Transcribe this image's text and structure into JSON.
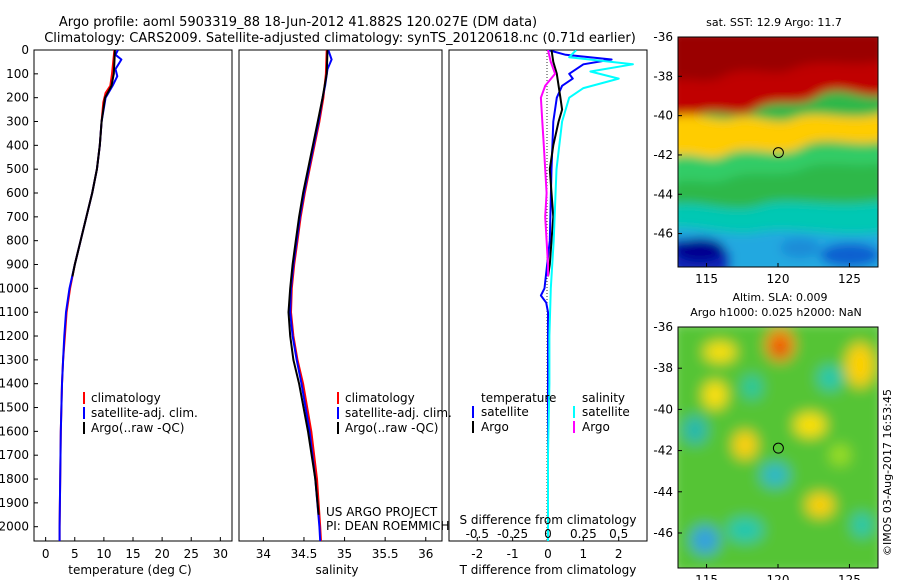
{
  "header": {
    "title_line1": "Argo profile: aoml 5903319_88 18-Jun-2012 41.882S 120.027E (DM data)",
    "title_line2": "Climatology: CARS2009. Satellite-adjusted climatology: synTS_20120618.nc (0.71d earlier)"
  },
  "colors": {
    "climatology": "#ff0000",
    "satellite": "#0000ff",
    "argo": "#000000",
    "sal_satellite": "#00ffff",
    "sal_argo": "#ff00ff",
    "marker": "#000000"
  },
  "depth_ticks": [
    "0",
    "100",
    "200",
    "300",
    "400",
    "500",
    "600",
    "700",
    "800",
    "900",
    "1000",
    "1100",
    "1200",
    "1300",
    "1400",
    "1500",
    "1600",
    "1700",
    "1800",
    "1900",
    "2000"
  ],
  "chart_data": [
    {
      "id": "temperature",
      "type": "line",
      "xlabel": "temperature (deg C)",
      "ylabel": "depth",
      "xlim": [
        -2,
        32
      ],
      "ylim": [
        0,
        2060
      ],
      "xticks": [
        "0",
        "5",
        "10",
        "15",
        "20",
        "25",
        "30"
      ],
      "legend": [
        "climatology",
        "satellite-adj. clim.",
        "Argo(..raw -QC)"
      ],
      "series": [
        {
          "name": "climatology",
          "color": "#ff0000",
          "depth": [
            0,
            50,
            100,
            150,
            180,
            220,
            300,
            400,
            500,
            600,
            700,
            800,
            900,
            1000,
            1100,
            1200,
            1300,
            1400,
            1600,
            1800,
            2000,
            2060
          ],
          "values": [
            11.8,
            11.6,
            11.4,
            11.1,
            10.3,
            9.9,
            9.6,
            9.3,
            8.8,
            8.0,
            7.0,
            6.0,
            5.0,
            4.2,
            3.6,
            3.3,
            3.0,
            2.8,
            2.6,
            2.5,
            2.4,
            2.4
          ]
        },
        {
          "name": "satellite-adj. clim.",
          "color": "#0000ff",
          "depth": [
            0,
            20,
            40,
            80,
            110,
            150,
            200,
            300,
            400,
            500,
            600,
            700,
            800,
            900,
            1000,
            1100,
            1200,
            1300,
            1400,
            1600,
            1800,
            2000,
            2060
          ],
          "values": [
            12.4,
            12.0,
            13.0,
            12.0,
            12.3,
            11.5,
            10.3,
            9.6,
            9.3,
            8.8,
            8.0,
            7.0,
            6.0,
            5.0,
            4.1,
            3.5,
            3.2,
            3.0,
            2.8,
            2.6,
            2.5,
            2.4,
            2.4
          ]
        },
        {
          "name": "Argo(..raw -QC)",
          "color": "#000000",
          "depth": [
            0,
            50,
            100,
            150,
            200,
            300,
            400,
            500,
            600,
            700,
            800,
            900,
            950
          ],
          "values": [
            11.9,
            11.8,
            11.7,
            11.3,
            10.2,
            9.6,
            9.3,
            8.8,
            8.0,
            7.0,
            6.0,
            5.0,
            4.6
          ]
        }
      ]
    },
    {
      "id": "salinity",
      "type": "line",
      "xlabel": "salinity",
      "ylabel": "depth",
      "xlim": [
        33.7,
        36.2
      ],
      "ylim": [
        0,
        2060
      ],
      "xticks": [
        "34",
        "34.5",
        "35",
        "35.5",
        "36"
      ],
      "legend": [
        "climatology",
        "satellite-adj. clim.",
        "Argo(..raw -QC)"
      ],
      "annotation_line1": "US ARGO PROJECT",
      "annotation_line2": "PI: DEAN ROEMMICH",
      "series": [
        {
          "name": "climatology",
          "color": "#ff0000",
          "depth": [
            0,
            100,
            200,
            300,
            400,
            500,
            600,
            700,
            800,
            900,
            1000,
            1100,
            1200,
            1300,
            1400,
            1600,
            1800,
            2000,
            2060
          ],
          "values": [
            34.78,
            34.77,
            34.74,
            34.69,
            34.63,
            34.57,
            34.51,
            34.46,
            34.42,
            34.38,
            34.35,
            34.34,
            34.37,
            34.42,
            34.49,
            34.59,
            34.66,
            34.7,
            34.71
          ]
        },
        {
          "name": "satellite-adj. clim.",
          "color": "#0000ff",
          "depth": [
            0,
            40,
            80,
            150,
            200,
            300,
            400,
            500,
            600,
            700,
            800,
            900,
            1000,
            1100,
            1200,
            1300,
            1400,
            1600,
            1800,
            2000,
            2060
          ],
          "values": [
            34.8,
            34.84,
            34.79,
            34.76,
            34.73,
            34.68,
            34.62,
            34.56,
            34.5,
            34.45,
            34.41,
            34.37,
            34.34,
            34.33,
            34.36,
            34.41,
            34.47,
            34.57,
            34.64,
            34.69,
            34.7
          ]
        },
        {
          "name": "Argo(..raw -QC)",
          "color": "#000000",
          "depth": [
            0,
            100,
            200,
            300,
            400,
            500,
            600,
            700,
            800,
            900,
            1000,
            1100,
            1200,
            1300,
            1400,
            1600,
            1800,
            1950
          ],
          "values": [
            34.79,
            34.78,
            34.73,
            34.67,
            34.61,
            34.55,
            34.49,
            34.44,
            34.4,
            34.36,
            34.33,
            34.31,
            34.33,
            34.37,
            34.44,
            34.55,
            34.64,
            34.68
          ]
        }
      ]
    },
    {
      "id": "difference",
      "type": "line",
      "xlabel": "T difference from climatology",
      "xlabel_top": "S difference from climatology",
      "xlim": [
        -2.8,
        2.8
      ],
      "ylim": [
        0,
        2060
      ],
      "xticks": [
        "-2",
        "-1",
        "0",
        "1",
        "2"
      ],
      "xticks_top": [
        "-0.5",
        "-0.25",
        "0",
        "0.25",
        "0.5"
      ],
      "legend_headers": [
        "temperature",
        "salinity"
      ],
      "legend": [
        "satellite",
        "Argo",
        "satellite",
        "Argo"
      ],
      "series": [
        {
          "name": "T satellite",
          "color": "#0000ff",
          "depth": [
            0,
            20,
            40,
            60,
            80,
            100,
            120,
            150,
            200,
            300,
            500,
            800,
            1000,
            1030,
            1060,
            1100,
            1300,
            1600,
            2060
          ],
          "values": [
            0.0,
            0.5,
            1.8,
            1.0,
            0.8,
            0.6,
            0.7,
            0.4,
            0.25,
            0.15,
            0.1,
            0.05,
            -0.1,
            -0.2,
            -0.05,
            0.0,
            0.0,
            0.0,
            0.0
          ]
        },
        {
          "name": "T Argo",
          "color": "#000000",
          "depth": [
            0,
            50,
            100,
            150,
            200,
            250,
            300,
            400,
            500,
            600,
            700,
            800,
            900,
            950
          ],
          "values": [
            0.1,
            0.15,
            0.25,
            0.3,
            0.35,
            0.4,
            0.3,
            0.15,
            0.05,
            0.1,
            0.15,
            0.1,
            0.05,
            0.0
          ]
        },
        {
          "name": "S satellite",
          "color": "#00ffff",
          "depth": [
            0,
            30,
            60,
            90,
            120,
            160,
            200,
            300,
            500,
            800,
            1000,
            1200,
            1400,
            1700,
            2060
          ],
          "values": [
            0.2,
            0.15,
            0.6,
            0.3,
            0.5,
            0.25,
            0.15,
            0.1,
            0.06,
            0.04,
            0.02,
            0.01,
            0.01,
            0.0,
            0.0
          ]
        },
        {
          "name": "S Argo",
          "color": "#ff00ff",
          "depth": [
            0,
            50,
            100,
            150,
            200,
            300,
            400,
            500,
            600,
            700,
            800,
            900,
            950
          ],
          "values": [
            0.0,
            0.02,
            0.05,
            -0.02,
            -0.05,
            -0.04,
            -0.03,
            -0.02,
            -0.01,
            -0.02,
            -0.01,
            0.0,
            0.0
          ]
        }
      ]
    },
    {
      "id": "sst_map",
      "type": "heatmap",
      "title": "sat. SST: 12.9 Argo: 11.7",
      "xticks": [
        "115",
        "120",
        "125"
      ],
      "yticks": [
        "-36",
        "-38",
        "-40",
        "-42",
        "-44",
        "-46"
      ],
      "xlim": [
        113,
        127
      ],
      "ylim": [
        -47.7,
        -36
      ],
      "marker": {
        "lon": 120.027,
        "lat": -41.882
      }
    },
    {
      "id": "sla_map",
      "type": "heatmap",
      "title_line1": "Altim. SLA: 0.009",
      "title_line2": "Argo h1000: 0.025 h2000: NaN",
      "xticks": [
        "115",
        "120",
        "125"
      ],
      "yticks": [
        "-36",
        "-38",
        "-40",
        "-42",
        "-44",
        "-46"
      ],
      "xlim": [
        113,
        127
      ],
      "ylim": [
        -47.7,
        -36
      ],
      "marker": {
        "lon": 120.027,
        "lat": -41.882
      }
    }
  ],
  "credit": "©IMOS 03-Aug-2017 16:53:45"
}
